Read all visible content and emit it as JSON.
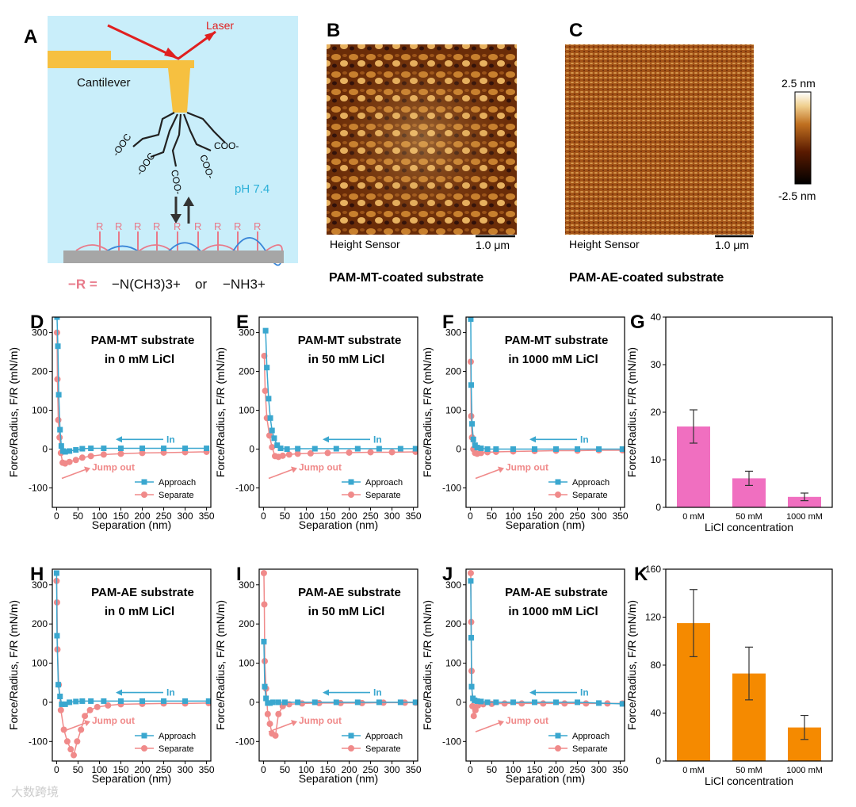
{
  "panel_letters": {
    "A": "A",
    "B": "B",
    "C": "C",
    "D": "D",
    "E": "E",
    "F": "F",
    "G": "G",
    "H": "H",
    "I": "I",
    "J": "J",
    "K": "K"
  },
  "schematic": {
    "laser": "Laser",
    "cantilever": "Cantilever",
    "ph": "pH 7.4",
    "coo_groups": [
      "-OOC",
      "-OOC",
      "COO-",
      "COO-",
      "COO-"
    ],
    "r_group": "R",
    "legend_r": "−R =",
    "legend_ions": "−N(CH3)3+",
    "legend_or": "or",
    "legend_nh3": "−NH3+"
  },
  "afm": {
    "b_sensor": "Height Sensor",
    "b_scale": "1.0 μm",
    "b_caption": "PAM-MT-coated substrate",
    "c_sensor": "Height Sensor",
    "c_scale": "1.0 μm",
    "c_caption": "PAM-AE-coated substrate",
    "colorbar_max": "2.5 nm",
    "colorbar_min": "-2.5 nm"
  },
  "colors": {
    "approach": "#3aa7cf",
    "separate": "#f08a8a",
    "bar_pink": "#f06fc0",
    "bar_orange": "#f58a00"
  },
  "chart_data": [
    {
      "id": "D",
      "type": "scatter",
      "title": [
        "PAM-MT substrate",
        "in 0 mM LiCl"
      ],
      "xlabel": "Separation (nm)",
      "ylabel": "Force/Radius, F/R (mN/m)",
      "xlim": [
        -10,
        360
      ],
      "ylim": [
        -150,
        340
      ],
      "xticks": [
        0,
        50,
        100,
        150,
        200,
        250,
        300,
        350
      ],
      "yticks": [
        -100,
        0,
        100,
        200,
        300
      ],
      "annot_in": "In",
      "annot_out": "Jump out",
      "legend": [
        "Approach",
        "Separate"
      ],
      "approach": [
        [
          1,
          340
        ],
        [
          3,
          265
        ],
        [
          5,
          140
        ],
        [
          8,
          50
        ],
        [
          11,
          8
        ],
        [
          15,
          -5
        ],
        [
          20,
          -7
        ],
        [
          30,
          -5
        ],
        [
          45,
          -2
        ],
        [
          60,
          1
        ],
        [
          80,
          2
        ],
        [
          110,
          2
        ],
        [
          150,
          2
        ],
        [
          200,
          2
        ],
        [
          250,
          2
        ],
        [
          300,
          2
        ],
        [
          350,
          2
        ]
      ],
      "separate": [
        [
          1,
          300
        ],
        [
          2,
          180
        ],
        [
          4,
          75
        ],
        [
          7,
          30
        ],
        [
          10,
          -10
        ],
        [
          14,
          -35
        ],
        [
          20,
          -37
        ],
        [
          30,
          -33
        ],
        [
          45,
          -28
        ],
        [
          60,
          -22
        ],
        [
          80,
          -18
        ],
        [
          110,
          -14
        ],
        [
          150,
          -12
        ],
        [
          200,
          -10
        ],
        [
          250,
          -9
        ],
        [
          300,
          -8
        ],
        [
          350,
          -7
        ]
      ]
    },
    {
      "id": "E",
      "type": "scatter",
      "title": [
        "PAM-MT substrate",
        "in 50 mM LiCl"
      ],
      "xlabel": "Separation (nm)",
      "ylabel": "Force/Radius, F/R (mN/m)",
      "xlim": [
        -10,
        360
      ],
      "ylim": [
        -150,
        340
      ],
      "xticks": [
        0,
        50,
        100,
        150,
        200,
        250,
        300,
        350
      ],
      "yticks": [
        -100,
        0,
        100,
        200,
        300
      ],
      "annot_in": "In",
      "annot_out": "Jump out",
      "legend": [
        "Approach",
        "Separate"
      ],
      "approach": [
        [
          5,
          305
        ],
        [
          8,
          210
        ],
        [
          12,
          130
        ],
        [
          16,
          80
        ],
        [
          20,
          48
        ],
        [
          25,
          28
        ],
        [
          32,
          10
        ],
        [
          40,
          2
        ],
        [
          55,
          0
        ],
        [
          80,
          1
        ],
        [
          120,
          1
        ],
        [
          170,
          1
        ],
        [
          220,
          1
        ],
        [
          270,
          1
        ],
        [
          320,
          1
        ],
        [
          355,
          1
        ]
      ],
      "separate": [
        [
          2,
          240
        ],
        [
          4,
          150
        ],
        [
          8,
          80
        ],
        [
          14,
          35
        ],
        [
          20,
          5
        ],
        [
          27,
          -18
        ],
        [
          35,
          -20
        ],
        [
          45,
          -17
        ],
        [
          60,
          -14
        ],
        [
          80,
          -12
        ],
        [
          110,
          -11
        ],
        [
          150,
          -10
        ],
        [
          200,
          -9
        ],
        [
          250,
          -8
        ],
        [
          300,
          -8
        ],
        [
          355,
          -7
        ]
      ]
    },
    {
      "id": "F",
      "type": "scatter",
      "title": [
        "PAM-MT substrate",
        "in 1000 mM LiCl"
      ],
      "xlabel": "Separation (nm)",
      "ylabel": "Force/Radius, F/R (mN/m)",
      "xlim": [
        -10,
        360
      ],
      "ylim": [
        -150,
        340
      ],
      "xticks": [
        0,
        50,
        100,
        150,
        200,
        250,
        300,
        350
      ],
      "yticks": [
        -100,
        0,
        100,
        200,
        300
      ],
      "annot_in": "In",
      "annot_out": "Jump out",
      "legend": [
        "Approach",
        "Separate"
      ],
      "approach": [
        [
          1,
          335
        ],
        [
          2,
          165
        ],
        [
          4,
          65
        ],
        [
          7,
          25
        ],
        [
          11,
          10
        ],
        [
          16,
          4
        ],
        [
          25,
          2
        ],
        [
          40,
          0
        ],
        [
          60,
          0
        ],
        [
          100,
          0
        ],
        [
          150,
          0
        ],
        [
          200,
          0
        ],
        [
          250,
          0
        ],
        [
          300,
          0
        ],
        [
          355,
          0
        ]
      ],
      "separate": [
        [
          1,
          225
        ],
        [
          2,
          85
        ],
        [
          4,
          30
        ],
        [
          7,
          0
        ],
        [
          11,
          -10
        ],
        [
          16,
          -12
        ],
        [
          25,
          -10
        ],
        [
          40,
          -8
        ],
        [
          60,
          -7
        ],
        [
          100,
          -6
        ],
        [
          150,
          -5
        ],
        [
          200,
          -4
        ],
        [
          250,
          -4
        ],
        [
          300,
          -3
        ],
        [
          355,
          -3
        ]
      ]
    },
    {
      "id": "G",
      "type": "bar",
      "categories": [
        "0 mM",
        "50 mM",
        "1000 mM"
      ],
      "values": [
        17.0,
        6.1,
        2.2
      ],
      "errors": [
        3.5,
        1.5,
        0.8
      ],
      "xlabel": "LiCl concentration",
      "ylabel": "Force/Radius, F/R (mN/m)",
      "ylim": [
        0,
        40
      ],
      "yticks": [
        0,
        10,
        20,
        30,
        40
      ]
    },
    {
      "id": "H",
      "type": "scatter",
      "title": [
        "PAM-AE substrate",
        "in 0 mM LiCl"
      ],
      "xlabel": "Separation (nm)",
      "ylabel": "Force/Radius, F/R (mN/m)",
      "xlim": [
        -10,
        360
      ],
      "ylim": [
        -150,
        340
      ],
      "xticks": [
        0,
        50,
        100,
        150,
        200,
        250,
        300,
        350
      ],
      "yticks": [
        -100,
        0,
        100,
        200,
        300
      ],
      "annot_in": "In",
      "annot_out": "Jump out",
      "legend": [
        "Approach",
        "Separate"
      ],
      "approach": [
        [
          0,
          330
        ],
        [
          1,
          170
        ],
        [
          4,
          45
        ],
        [
          8,
          15
        ],
        [
          12,
          -5
        ],
        [
          20,
          -5
        ],
        [
          30,
          0
        ],
        [
          45,
          2
        ],
        [
          60,
          3
        ],
        [
          80,
          3
        ],
        [
          110,
          3
        ],
        [
          150,
          3
        ],
        [
          200,
          3
        ],
        [
          250,
          3
        ],
        [
          300,
          3
        ],
        [
          355,
          3
        ]
      ],
      "separate": [
        [
          0,
          310
        ],
        [
          1,
          255
        ],
        [
          2,
          135
        ],
        [
          5,
          45
        ],
        [
          10,
          -20
        ],
        [
          17,
          -70
        ],
        [
          25,
          -100
        ],
        [
          33,
          -120
        ],
        [
          40,
          -135
        ],
        [
          48,
          -100
        ],
        [
          57,
          -70
        ],
        [
          66,
          -35
        ],
        [
          78,
          -20
        ],
        [
          95,
          -12
        ],
        [
          120,
          -8
        ],
        [
          150,
          -5
        ],
        [
          200,
          -4
        ],
        [
          250,
          -3
        ],
        [
          300,
          -3
        ],
        [
          355,
          -2
        ]
      ]
    },
    {
      "id": "I",
      "type": "scatter",
      "title": [
        "PAM-AE substrate",
        "in 50 mM LiCl"
      ],
      "xlabel": "Separation (nm)",
      "ylabel": "Force/Radius, F/R (mN/m)",
      "xlim": [
        -10,
        360
      ],
      "ylim": [
        -150,
        340
      ],
      "xticks": [
        0,
        50,
        100,
        150,
        200,
        250,
        300,
        350
      ],
      "yticks": [
        -100,
        0,
        100,
        200,
        300
      ],
      "annot_in": "In",
      "annot_out": "Jump out",
      "legend": [
        "Approach",
        "Separate"
      ],
      "approach": [
        [
          1,
          155
        ],
        [
          3,
          40
        ],
        [
          6,
          10
        ],
        [
          10,
          -2
        ],
        [
          15,
          -2
        ],
        [
          22,
          0
        ],
        [
          35,
          0
        ],
        [
          50,
          0
        ],
        [
          80,
          0
        ],
        [
          120,
          0
        ],
        [
          170,
          0
        ],
        [
          220,
          0
        ],
        [
          270,
          0
        ],
        [
          320,
          0
        ],
        [
          355,
          0
        ]
      ],
      "separate": [
        [
          1,
          330
        ],
        [
          2,
          250
        ],
        [
          3,
          105
        ],
        [
          6,
          35
        ],
        [
          10,
          -30
        ],
        [
          15,
          -55
        ],
        [
          20,
          -80
        ],
        [
          28,
          -85
        ],
        [
          35,
          -30
        ],
        [
          45,
          -10
        ],
        [
          60,
          -5
        ],
        [
          90,
          -3
        ],
        [
          130,
          -2
        ],
        [
          180,
          -2
        ],
        [
          230,
          -2
        ],
        [
          280,
          -1
        ],
        [
          330,
          -1
        ],
        [
          355,
          -1
        ]
      ]
    },
    {
      "id": "J",
      "type": "scatter",
      "title": [
        "PAM-AE substrate",
        "in 1000 mM LiCl"
      ],
      "xlabel": "Separation (nm)",
      "ylabel": "Force/Radius, F/R (mN/m)",
      "xlim": [
        -10,
        360
      ],
      "ylim": [
        -150,
        340
      ],
      "xticks": [
        0,
        50,
        100,
        150,
        200,
        250,
        300,
        350
      ],
      "yticks": [
        -100,
        0,
        100,
        200,
        300
      ],
      "annot_in": "In",
      "annot_out": "Jump out",
      "legend": [
        "Approach",
        "Separate"
      ],
      "approach": [
        [
          1,
          310
        ],
        [
          2,
          165
        ],
        [
          3,
          40
        ],
        [
          6,
          10
        ],
        [
          10,
          5
        ],
        [
          16,
          3
        ],
        [
          25,
          2
        ],
        [
          40,
          0
        ],
        [
          60,
          0
        ],
        [
          100,
          0
        ],
        [
          150,
          0
        ],
        [
          200,
          0
        ],
        [
          250,
          0
        ],
        [
          300,
          -2
        ],
        [
          355,
          -4
        ]
      ],
      "separate": [
        [
          1,
          330
        ],
        [
          2,
          205
        ],
        [
          3,
          80
        ],
        [
          5,
          -10
        ],
        [
          8,
          -35
        ],
        [
          12,
          -20
        ],
        [
          18,
          -8
        ],
        [
          30,
          -5
        ],
        [
          50,
          -4
        ],
        [
          80,
          -3
        ],
        [
          120,
          -3
        ],
        [
          170,
          -3
        ],
        [
          220,
          -3
        ],
        [
          270,
          -3
        ],
        [
          320,
          -3
        ],
        [
          355,
          -3
        ]
      ]
    },
    {
      "id": "K",
      "type": "bar",
      "categories": [
        "0 mM",
        "50 mM",
        "1000 mM"
      ],
      "values": [
        115,
        73,
        28
      ],
      "errors": [
        28,
        22,
        10
      ],
      "xlabel": "LiCl concentration",
      "ylabel": "Force/Radius, F/R (mN/m)",
      "ylim": [
        0,
        160
      ],
      "yticks": [
        0,
        40,
        80,
        120,
        160
      ]
    }
  ]
}
